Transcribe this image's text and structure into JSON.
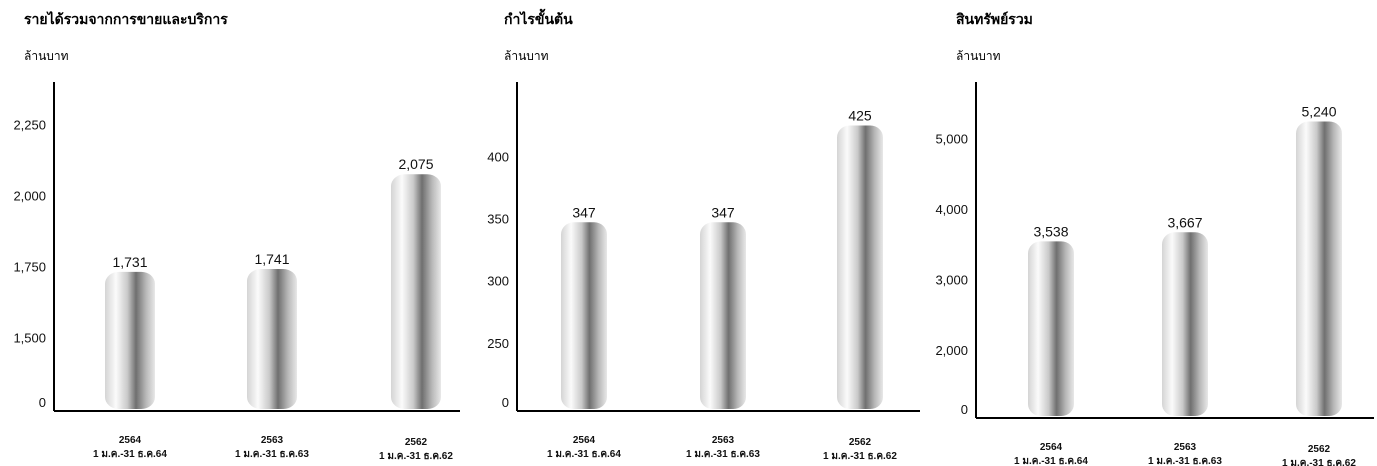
{
  "chart_data": [
    {
      "type": "bar",
      "title": "รายได้รวมจากการขายและบริการ",
      "unit": "ล้านบาท",
      "categories": [
        "2564",
        "2563",
        "2562"
      ],
      "category_sublabels": [
        "1 ม.ค.-31 ธ.ค.64",
        "1 ม.ค.-31 ธ.ค.63",
        "1 ม.ค.-31 ธ.ค.62"
      ],
      "values": [
        1731,
        1741,
        2075
      ],
      "value_labels": [
        "1,731",
        "1,741",
        "2,075"
      ],
      "yticks": [
        0,
        1500,
        1750,
        2000,
        2250
      ],
      "ytick_labels": [
        "0",
        "1,500",
        "1,750",
        "2,000",
        "2,250"
      ],
      "axis_break": true,
      "ylim": [
        1350,
        2400
      ]
    },
    {
      "type": "bar",
      "title": "กำไรขั้นต้น",
      "unit": "ล้านบาท",
      "categories": [
        "2564",
        "2563",
        "2562"
      ],
      "category_sublabels": [
        "1 ม.ค.-31 ธ.ค.64",
        "1 ม.ค.-31 ธ.ค.63",
        "1 ม.ค.-31 ธ.ค.62"
      ],
      "values": [
        347,
        347,
        425
      ],
      "value_labels": [
        "347",
        "347",
        "425"
      ],
      "yticks": [
        0,
        250,
        300,
        350,
        400
      ],
      "ytick_labels": [
        "0",
        "250",
        "300",
        "350",
        "400"
      ],
      "axis_break": true,
      "ylim": [
        220,
        460
      ]
    },
    {
      "type": "bar",
      "title": "สินทรัพย์รวม",
      "unit": "ล้านบาท",
      "categories": [
        "2564",
        "2563",
        "2562"
      ],
      "category_sublabels": [
        "1 ม.ค.-31 ธ.ค.64",
        "1 ม.ค.-31 ธ.ค.63",
        "1 ม.ค.-31 ธ.ค.62"
      ],
      "values": [
        3538,
        3667,
        5240
      ],
      "value_labels": [
        "3,538",
        "3,667",
        "5,240"
      ],
      "yticks": [
        0,
        2000,
        3000,
        4000,
        5000
      ],
      "ytick_labels": [
        "0",
        "2,000",
        "3,000",
        "4,000",
        "5,000"
      ],
      "axis_break": true,
      "ylim": [
        1500,
        5800
      ]
    }
  ]
}
